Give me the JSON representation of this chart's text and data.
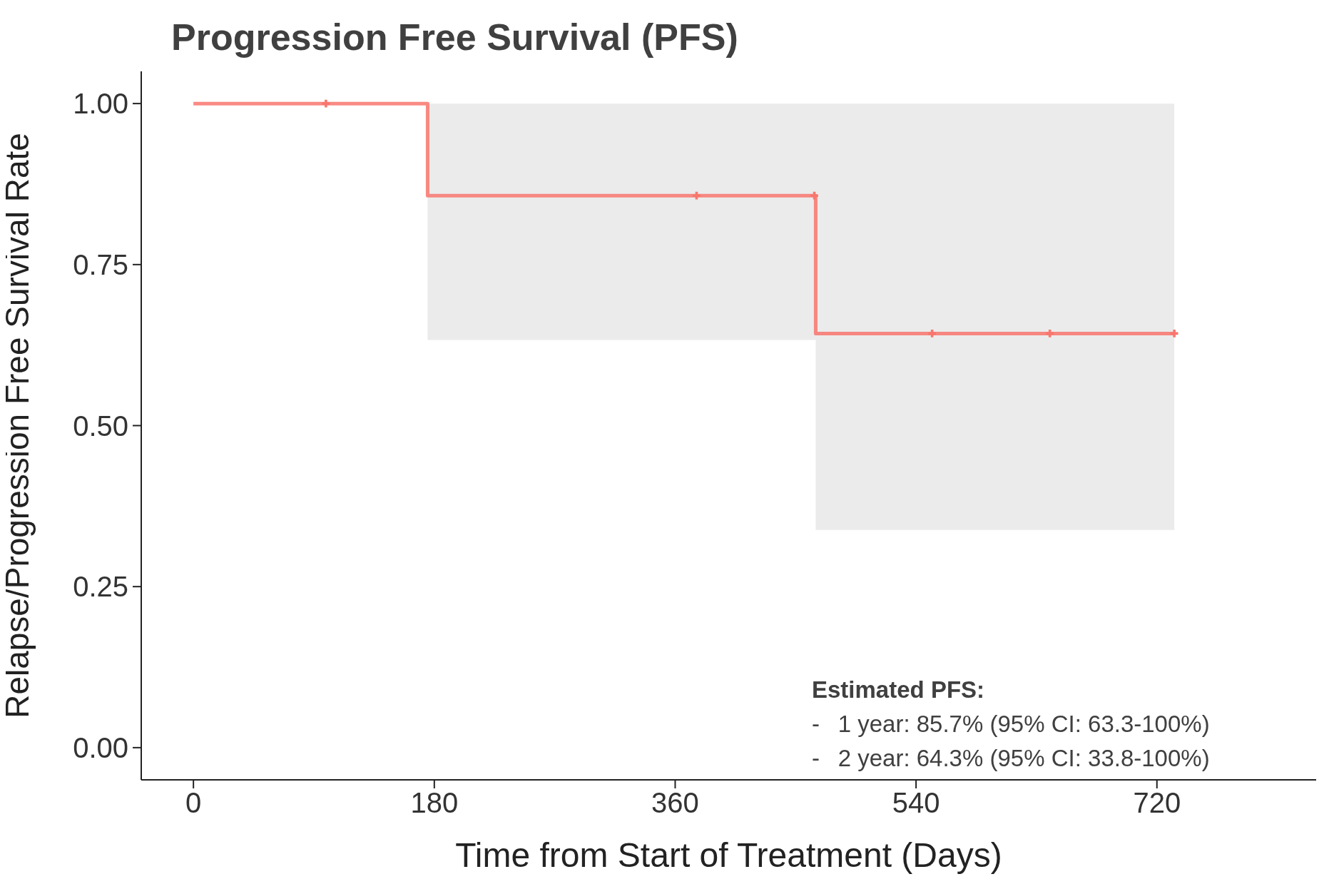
{
  "chart_data": {
    "type": "step",
    "title": "Progression Free Survival (PFS)",
    "xlabel": "Time from Start of Treatment (Days)",
    "ylabel": "Relapse/Progression Free Survival Rate",
    "xlim": [
      -39,
      839
    ],
    "xticks": [
      0,
      180,
      360,
      540,
      720
    ],
    "ylim": [
      -0.05,
      1.05
    ],
    "yticks": [
      {
        "value": 0,
        "label": "0.00"
      },
      {
        "value": 0.25,
        "label": "0.25"
      },
      {
        "value": 0.5,
        "label": "0.50"
      },
      {
        "value": 0.75,
        "label": "0.75"
      },
      {
        "value": 1,
        "label": "1.00"
      }
    ],
    "series": [
      {
        "color": "#f8766d",
        "x": [
          0,
          175,
          465,
          733
        ],
        "values": [
          1,
          0.857,
          0.643,
          0.643
        ],
        "lower": [
          null,
          0.633,
          0.338,
          0.338
        ],
        "upper": [
          null,
          1,
          1,
          1
        ]
      },
      {
        "type": "scatter",
        "color": "#f8766d",
        "marker": "cross",
        "x": [
          99,
          376,
          464,
          552,
          640,
          733
        ],
        "values": [
          1,
          0.857,
          0.857,
          0.643,
          0.643,
          0.643
        ]
      }
    ],
    "annotations": [
      "Estimated PFS:",
      "-\t1 year: 85.7% (95% CI: 63.3-100%)",
      "-\t2 year: 64.3% (95% CI: 33.8-100%)"
    ]
  }
}
